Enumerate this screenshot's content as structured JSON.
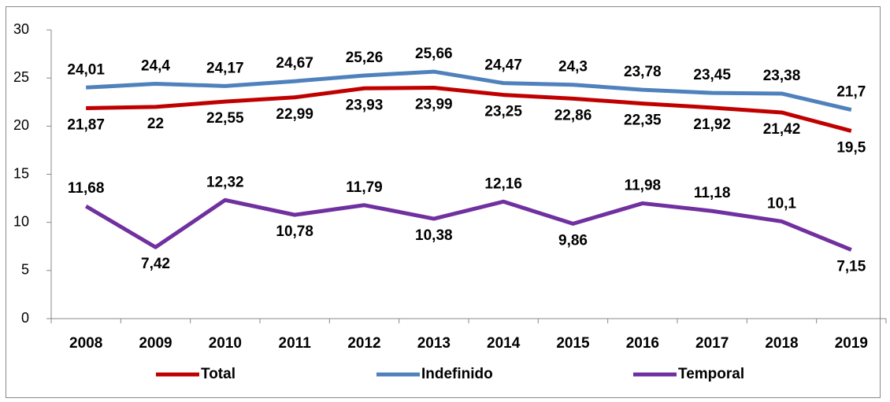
{
  "chart_data": {
    "type": "line",
    "categories": [
      "2008",
      "2009",
      "2010",
      "2011",
      "2012",
      "2013",
      "2014",
      "2015",
      "2016",
      "2017",
      "2018",
      "2019"
    ],
    "series": [
      {
        "name": "Total",
        "color": "#c00000",
        "values": [
          21.87,
          22,
          22.55,
          22.99,
          23.93,
          23.99,
          23.25,
          22.86,
          22.35,
          21.92,
          21.42,
          19.5
        ],
        "value_labels": [
          "21,87",
          "22",
          "22,55",
          "22,99",
          "23,93",
          "23,99",
          "23,25",
          "22,86",
          "22,35",
          "21,92",
          "21,42",
          "19,5"
        ]
      },
      {
        "name": "Indefinido",
        "color": "#4f81bd",
        "values": [
          24.01,
          24.4,
          24.17,
          24.67,
          25.26,
          25.66,
          24.47,
          24.3,
          23.78,
          23.45,
          23.38,
          21.7
        ],
        "value_labels": [
          "24,01",
          "24,4",
          "24,17",
          "24,67",
          "25,26",
          "25,66",
          "24,47",
          "24,3",
          "23,78",
          "23,45",
          "23,38",
          "21,7"
        ]
      },
      {
        "name": "Temporal",
        "color": "#7030a0",
        "values": [
          11.68,
          7.42,
          12.32,
          10.78,
          11.79,
          10.38,
          12.16,
          9.86,
          11.98,
          11.18,
          10.1,
          7.15
        ],
        "value_labels": [
          "11,68",
          "7,42",
          "12,32",
          "10,78",
          "11,79",
          "10,38",
          "12,16",
          "9,86",
          "11,98",
          "11,18",
          "10,1",
          "7,15"
        ]
      }
    ],
    "ylim": [
      0,
      30
    ],
    "yticks": [
      0,
      5,
      10,
      15,
      20,
      25,
      30
    ],
    "legend": "bottom"
  }
}
